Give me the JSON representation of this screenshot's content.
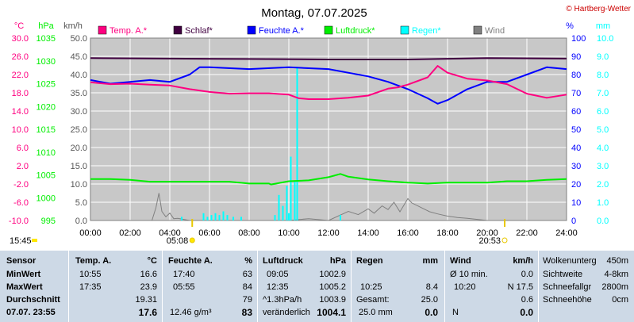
{
  "header": {
    "title": "Montag, 07.07.2025",
    "copyright": "© Hartberg-Wetter"
  },
  "colors": {
    "temp": "#ff0080",
    "schlaf": "#400040",
    "feuchte": "#0000ff",
    "luftdruck": "#00ee00",
    "regen": "#00ffff",
    "wind": "#808080",
    "plot_bg": "#c8c8c8",
    "stats_bg": "#cdd9e6"
  },
  "legend": [
    {
      "label": "Temp. A.*",
      "color": "#ff0080"
    },
    {
      "label": "Schlaf*",
      "color": "#400040"
    },
    {
      "label": "Feuchte A.*",
      "color": "#0000ff"
    },
    {
      "label": "Luftdruck*",
      "color": "#00ee00"
    },
    {
      "label": "Regen*",
      "color": "#00ffff"
    },
    {
      "label": "Wind",
      "color": "#808080"
    }
  ],
  "chart_data": {
    "type": "line",
    "axes": {
      "temp": {
        "unit": "°C",
        "min": -10.0,
        "max": 30.0,
        "ticks": [
          "30.0",
          "26.0",
          "22.0",
          "18.0",
          "14.0",
          "10.0",
          "6.0",
          "2.0",
          "-2.0",
          "-6.0",
          "-10.0"
        ]
      },
      "pressure": {
        "unit": "hPa",
        "min": 995,
        "max": 1035,
        "ticks": [
          "1035",
          "1030",
          "1025",
          "1020",
          "1015",
          "1010",
          "1005",
          "1000",
          "995"
        ]
      },
      "wind": {
        "unit": "km/h",
        "min": 0.0,
        "max": 50.0,
        "ticks": [
          "50.0",
          "45.0",
          "40.0",
          "35.0",
          "30.0",
          "25.0",
          "20.0",
          "15.0",
          "10.0",
          "5.0",
          "0.0"
        ]
      },
      "humidity": {
        "unit": "%",
        "min": 0,
        "max": 100,
        "ticks": [
          "100",
          "90",
          "80",
          "70",
          "60",
          "50",
          "40",
          "30",
          "20",
          "10",
          "0"
        ]
      },
      "rain": {
        "unit": "mm",
        "min": 0.0,
        "max": 10.0,
        "ticks": [
          "10.0",
          "9.0",
          "8.0",
          "7.0",
          "6.0",
          "5.0",
          "4.0",
          "3.0",
          "2.0",
          "1.0",
          "0.0"
        ]
      },
      "x_ticks": [
        "00:00",
        "02:00",
        "04:00",
        "06:00",
        "08:00",
        "10:00",
        "12:00",
        "14:00",
        "16:00",
        "18:00",
        "20:00",
        "22:00",
        "24:00"
      ]
    },
    "series": [
      {
        "name": "Temp. A.*",
        "axis": "temp",
        "x": [
          0,
          1,
          2,
          3,
          4,
          5,
          6,
          7,
          8,
          9,
          10,
          10.5,
          11,
          12,
          13,
          14,
          15,
          15.5,
          16,
          17,
          17.5,
          18,
          19,
          20,
          21,
          22,
          23,
          24
        ],
        "y": [
          20.3,
          19.9,
          20.0,
          19.8,
          19.6,
          18.8,
          18.2,
          17.8,
          17.9,
          17.9,
          17.6,
          16.8,
          16.6,
          16.6,
          16.9,
          17.4,
          18.9,
          19.2,
          19.8,
          21.4,
          23.9,
          22.4,
          21.1,
          20.7,
          19.9,
          17.8,
          16.9,
          17.6
        ]
      },
      {
        "name": "Schlaf*",
        "axis": "temp",
        "x": [
          0,
          4,
          8,
          12,
          16,
          20,
          24
        ],
        "y": [
          25.6,
          25.5,
          25.4,
          25.3,
          25.3,
          25.6,
          25.5
        ]
      },
      {
        "name": "Feuchte A.*",
        "axis": "humidity",
        "x": [
          0,
          1,
          2,
          3,
          4,
          5,
          5.5,
          6,
          8,
          10,
          12,
          14,
          15,
          16,
          17,
          17.5,
          18,
          19,
          20,
          21,
          22,
          23,
          24
        ],
        "y": [
          77,
          75,
          76,
          77,
          76,
          80,
          84,
          84,
          83,
          84,
          83,
          79,
          76,
          72,
          67,
          64,
          66,
          72,
          76,
          76,
          80,
          84,
          83
        ]
      },
      {
        "name": "Luftdruck*",
        "axis": "pressure",
        "x": [
          0,
          1,
          2,
          3,
          4,
          5,
          6,
          7,
          8,
          9,
          9.1,
          10,
          11,
          12,
          12.6,
          13,
          14,
          15,
          16,
          17,
          18,
          19,
          20,
          21,
          22,
          23,
          24
        ],
        "y": [
          1004.1,
          1004.1,
          1003.9,
          1003.5,
          1003.5,
          1003.5,
          1003.5,
          1003.5,
          1003.1,
          1003.1,
          1002.9,
          1003.6,
          1003.8,
          1004.5,
          1005.2,
          1004.6,
          1004.0,
          1003.6,
          1003.3,
          1003.1,
          1003.3,
          1003.3,
          1003.3,
          1003.6,
          1003.6,
          1003.9,
          1004.1
        ]
      },
      {
        "name": "Regen*",
        "axis": "rain",
        "style": "bars",
        "x": [
          4.6,
          5.7,
          5.9,
          6.1,
          6.3,
          6.5,
          6.7,
          6.9,
          7.2,
          7.6,
          9.3,
          9.5,
          9.7,
          9.9,
          10.0,
          10.1,
          10.3,
          10.42,
          12.6
        ],
        "y": [
          0.2,
          0.4,
          0.2,
          0.3,
          0.4,
          0.3,
          0.5,
          0.3,
          0.2,
          0.2,
          0.3,
          1.4,
          0.8,
          1.9,
          0.4,
          3.5,
          2.2,
          8.4,
          0.3
        ]
      },
      {
        "name": "Wind",
        "axis": "wind",
        "style": "area",
        "x": [
          0,
          3.1,
          3.3,
          3.45,
          3.6,
          3.8,
          4.0,
          4.2,
          4.4,
          5,
          6,
          7,
          8,
          9,
          10,
          11,
          12,
          13,
          13.5,
          14,
          14.3,
          14.7,
          15,
          15.3,
          15.6,
          16,
          16.2,
          16.5,
          16.8,
          17.1,
          17.5,
          18,
          18.5,
          19,
          20,
          24
        ],
        "y": [
          0,
          0,
          3.5,
          7.5,
          2.5,
          1.0,
          2.0,
          0.5,
          0.6,
          0,
          0,
          0,
          0,
          0,
          0,
          0.5,
          0,
          2.5,
          1.6,
          3.2,
          2.0,
          4.0,
          3.0,
          5.0,
          2.4,
          6.0,
          4.8,
          4.0,
          3.2,
          2.4,
          1.8,
          1.2,
          0.8,
          0.6,
          0,
          0
        ]
      }
    ],
    "markers": [
      {
        "label": "05:08",
        "value": 5.13,
        "type": "sunrise"
      },
      {
        "label": "20:53",
        "value": 20.88,
        "type": "sunset"
      }
    ],
    "time_label": "15:45"
  },
  "stats": {
    "sensor": {
      "title": "Sensor",
      "rows": [
        "MinWert",
        "MaxWert",
        "Durchschnitt",
        "07.07. 23:55"
      ]
    },
    "temp": {
      "title": "Temp. A.",
      "unit": "°C",
      "rows": [
        {
          "t": "10:55",
          "v": "16.6"
        },
        {
          "t": "17:35",
          "v": "23.9"
        },
        {
          "t": "",
          "v": "19.31"
        },
        {
          "t": "",
          "v": "17.6"
        }
      ]
    },
    "feuchte": {
      "title": "Feuchte A.",
      "unit": "%",
      "rows": [
        {
          "t": "17:40",
          "v": "63"
        },
        {
          "t": "05:55",
          "v": "84"
        },
        {
          "t": "",
          "v": "79"
        },
        {
          "t": "12.46 g/m³",
          "v": "83"
        }
      ]
    },
    "luftdruck": {
      "title": "Luftdruck",
      "unit": "hPa",
      "rows": [
        {
          "t": "09:05",
          "v": "1002.9"
        },
        {
          "t": "12:35",
          "v": "1005.2"
        },
        {
          "t": "^1.3hPa/h",
          "v": "1003.9"
        },
        {
          "t": "veränderlich",
          "v": "1004.1"
        }
      ]
    },
    "regen": {
      "title": "Regen",
      "unit": "mm",
      "rows": [
        {
          "t": "",
          "v": ""
        },
        {
          "t": "10:25",
          "v": "8.4"
        },
        {
          "t": "Gesamt:",
          "v": "25.0"
        },
        {
          "t": "25.0 mm",
          "v": "0.0"
        }
      ]
    },
    "wind": {
      "title": "Wind",
      "unit": "km/h",
      "rows": [
        {
          "t": "Ø 10 min.",
          "v": "0.0"
        },
        {
          "t": "10:20",
          "v": "N 17.5"
        },
        {
          "t": "",
          "v": "0.6"
        },
        {
          "t": "N",
          "v": "0.0"
        }
      ]
    },
    "extra": {
      "rows": [
        {
          "label": "Wolkenunterg",
          "value": "450m"
        },
        {
          "label": "Sichtweite",
          "value": "4-8km"
        },
        {
          "label": "Schneefallgr",
          "value": "2800m"
        },
        {
          "label": "Schneehöhe",
          "value": "0cm"
        }
      ]
    }
  }
}
